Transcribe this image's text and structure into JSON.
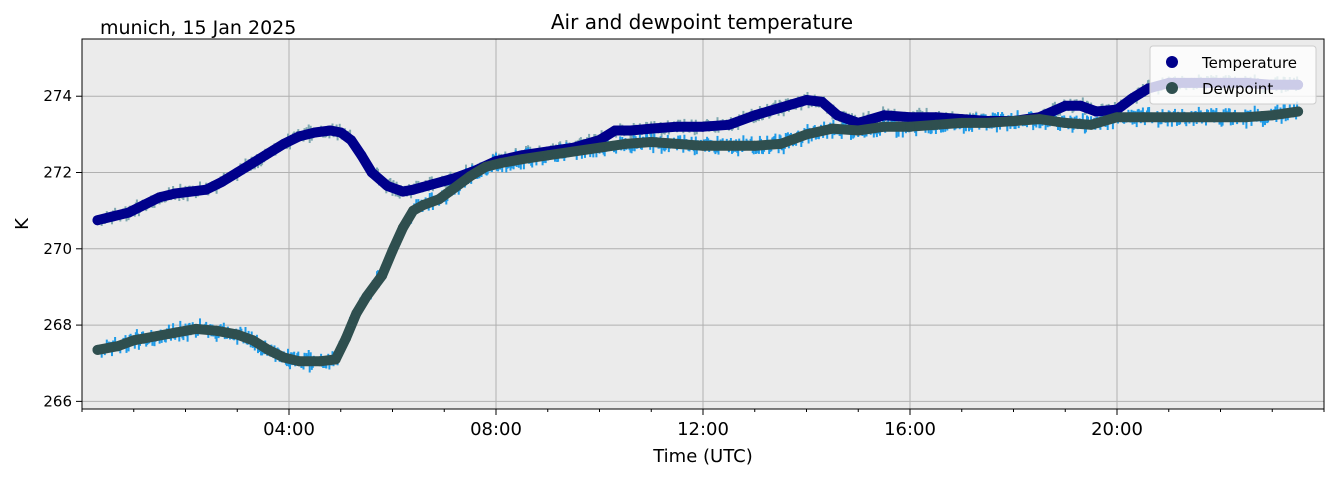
{
  "chart_data": {
    "type": "line",
    "title": "Air and dewpoint temperature",
    "location_label": "munich, 15 Jan 2025",
    "xlabel": "Time (UTC)",
    "ylabel": "K",
    "xlim": [
      0.0,
      24.0
    ],
    "ylim": [
      265.8,
      275.5
    ],
    "x_unit": "hours UTC",
    "x_ticks": [
      4,
      8,
      12,
      16,
      20
    ],
    "x_tick_labels": [
      "04:00",
      "08:00",
      "12:00",
      "16:00",
      "20:00"
    ],
    "y_ticks": [
      266,
      268,
      270,
      272,
      274
    ],
    "y_tick_labels": [
      "266",
      "268",
      "270",
      "272",
      "274"
    ],
    "grid": true,
    "legend_position": "top-right",
    "colors": {
      "plot_background": "#ebebeb",
      "grid": "#b0b0b0",
      "temperature": "#00008b",
      "dewpoint": "#2f4f4f",
      "raw_temperature": "#7fa8b0",
      "raw_dewpoint": "#1e9be8"
    },
    "series": [
      {
        "name": "Temperature",
        "x": [
          0.3,
          0.6,
          0.9,
          1.2,
          1.5,
          1.8,
          2.1,
          2.4,
          2.7,
          3.0,
          3.3,
          3.6,
          3.9,
          4.2,
          4.5,
          4.8,
          5.0,
          5.2,
          5.4,
          5.6,
          5.9,
          6.2,
          6.4,
          6.8,
          7.2,
          7.6,
          8.0,
          8.5,
          9.0,
          9.5,
          10.0,
          10.3,
          10.6,
          11.0,
          11.5,
          12.0,
          12.5,
          13.0,
          13.5,
          14.0,
          14.3,
          14.6,
          15.0,
          15.5,
          16.0,
          16.5,
          17.0,
          17.5,
          18.0,
          18.5,
          19.0,
          19.3,
          19.6,
          20.0,
          20.3,
          20.6,
          21.0,
          21.5,
          22.0,
          22.5,
          23.0,
          23.5
        ],
        "y": [
          270.75,
          270.85,
          270.95,
          271.15,
          271.35,
          271.45,
          271.5,
          271.55,
          271.75,
          272.0,
          272.25,
          272.5,
          272.75,
          272.95,
          273.05,
          273.1,
          273.05,
          272.85,
          272.45,
          272.0,
          271.65,
          271.5,
          271.55,
          271.7,
          271.85,
          272.05,
          272.3,
          272.45,
          272.55,
          272.65,
          272.85,
          273.1,
          273.1,
          273.15,
          273.2,
          273.2,
          273.25,
          273.5,
          273.7,
          273.9,
          273.85,
          273.5,
          273.3,
          273.5,
          273.45,
          273.45,
          273.4,
          273.35,
          273.35,
          273.45,
          273.75,
          273.75,
          273.6,
          273.65,
          273.95,
          274.2,
          274.35,
          274.35,
          274.35,
          274.35,
          274.3,
          274.3
        ]
      },
      {
        "name": "Dewpoint",
        "x": [
          0.3,
          0.7,
          1.0,
          1.4,
          1.8,
          2.2,
          2.6,
          3.0,
          3.3,
          3.6,
          3.9,
          4.2,
          4.6,
          4.9,
          5.1,
          5.3,
          5.5,
          5.8,
          6.0,
          6.2,
          6.4,
          6.6,
          6.9,
          7.2,
          7.5,
          7.8,
          8.1,
          8.5,
          9.0,
          9.5,
          10.0,
          10.5,
          11.0,
          11.5,
          12.0,
          12.5,
          13.0,
          13.5,
          14.0,
          14.5,
          15.0,
          15.5,
          16.0,
          16.5,
          17.0,
          17.5,
          18.0,
          18.5,
          19.0,
          19.5,
          20.0,
          20.5,
          21.0,
          21.5,
          22.0,
          22.5,
          23.0,
          23.5
        ],
        "y": [
          267.35,
          267.45,
          267.6,
          267.7,
          267.8,
          267.9,
          267.85,
          267.75,
          267.6,
          267.35,
          267.15,
          267.05,
          267.05,
          267.1,
          267.65,
          268.3,
          268.75,
          269.3,
          269.95,
          270.55,
          271.0,
          271.15,
          271.3,
          271.6,
          271.9,
          272.15,
          272.25,
          272.35,
          272.45,
          272.55,
          272.65,
          272.75,
          272.8,
          272.75,
          272.7,
          272.7,
          272.7,
          272.75,
          273.0,
          273.15,
          273.1,
          273.2,
          273.2,
          273.25,
          273.3,
          273.3,
          273.35,
          273.4,
          273.3,
          273.25,
          273.45,
          273.45,
          273.45,
          273.45,
          273.45,
          273.45,
          273.5,
          273.6
        ]
      }
    ]
  }
}
